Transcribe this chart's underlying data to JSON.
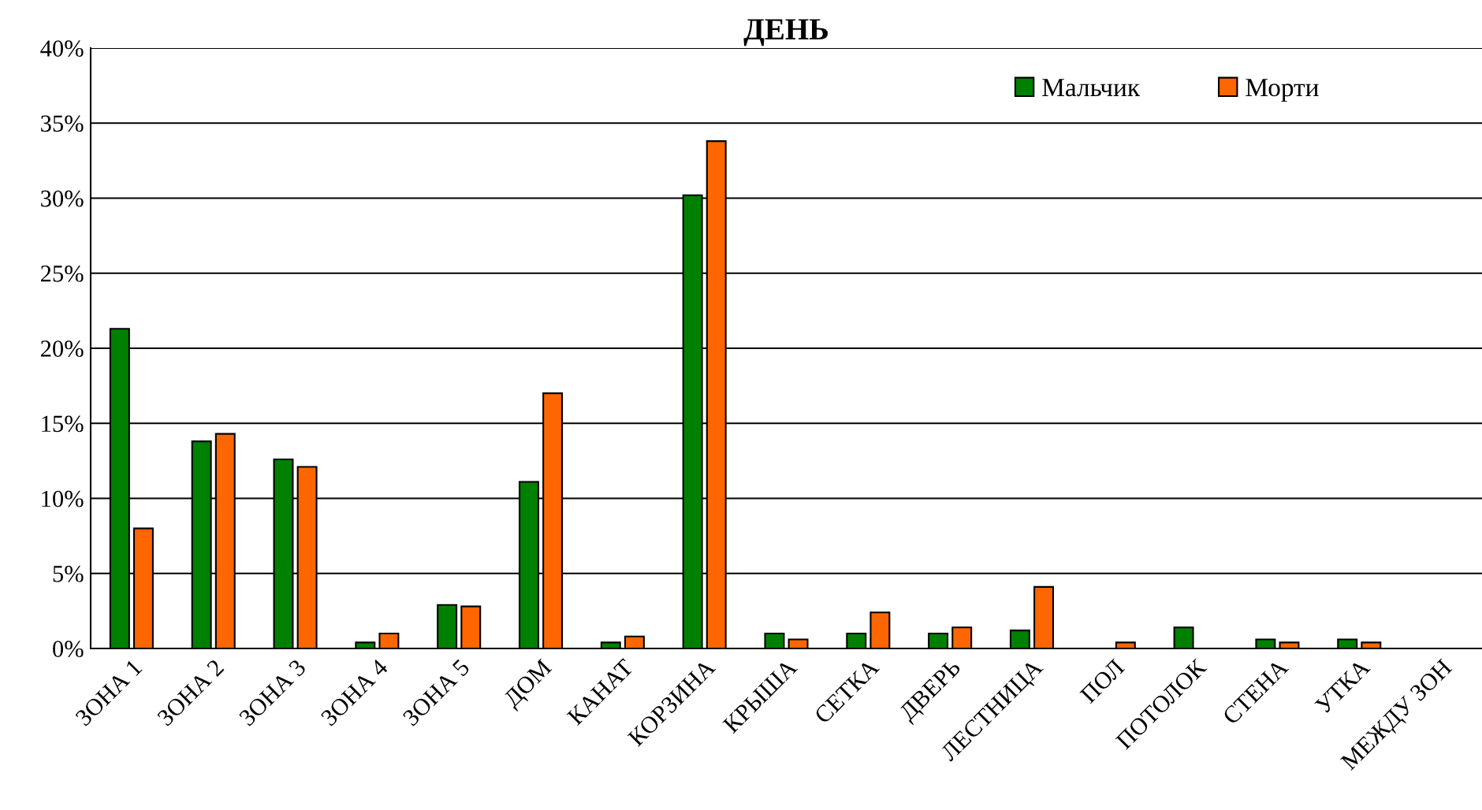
{
  "chart_data": {
    "type": "bar",
    "title": "ДЕНЬ",
    "categories": [
      "ЗОНА 1",
      "ЗОНА 2",
      "ЗОНА 3",
      "ЗОНА 4",
      "ЗОНА 5",
      "ДОМ",
      "КАНАТ",
      "КОРЗИНА",
      "КРЫША",
      "СЕТКА",
      "ДВЕРЬ",
      "ЛЕСТНИЦА",
      "ПОЛ",
      "ПОТОЛОК",
      "СТЕНА",
      "УТКА",
      "МЕЖДУ ЗОН"
    ],
    "series": [
      {
        "name": "Мальчик",
        "color": "#008000",
        "values": [
          21.3,
          13.8,
          12.6,
          0.4,
          2.9,
          11.1,
          0.4,
          30.2,
          1.0,
          1.0,
          1.0,
          1.2,
          null,
          1.4,
          0.6,
          0.6,
          null
        ]
      },
      {
        "name": "Морти",
        "color": "#ff6600",
        "values": [
          8.0,
          14.3,
          12.1,
          1.0,
          2.8,
          17.0,
          0.8,
          33.8,
          0.6,
          2.4,
          1.4,
          4.1,
          0.4,
          null,
          0.4,
          0.4,
          null
        ]
      }
    ],
    "ylim": [
      0,
      40
    ],
    "yticks": [
      {
        "value": 0,
        "label": "0%"
      },
      {
        "value": 5,
        "label": "5%"
      },
      {
        "value": 10,
        "label": "10%"
      },
      {
        "value": 15,
        "label": "15%"
      },
      {
        "value": 20,
        "label": "20%"
      },
      {
        "value": 25,
        "label": "25%"
      },
      {
        "value": 30,
        "label": "30%"
      },
      {
        "value": 35,
        "label": "35%"
      },
      {
        "value": 40,
        "label": "40%"
      }
    ],
    "grid": "y",
    "legend": "top right"
  }
}
